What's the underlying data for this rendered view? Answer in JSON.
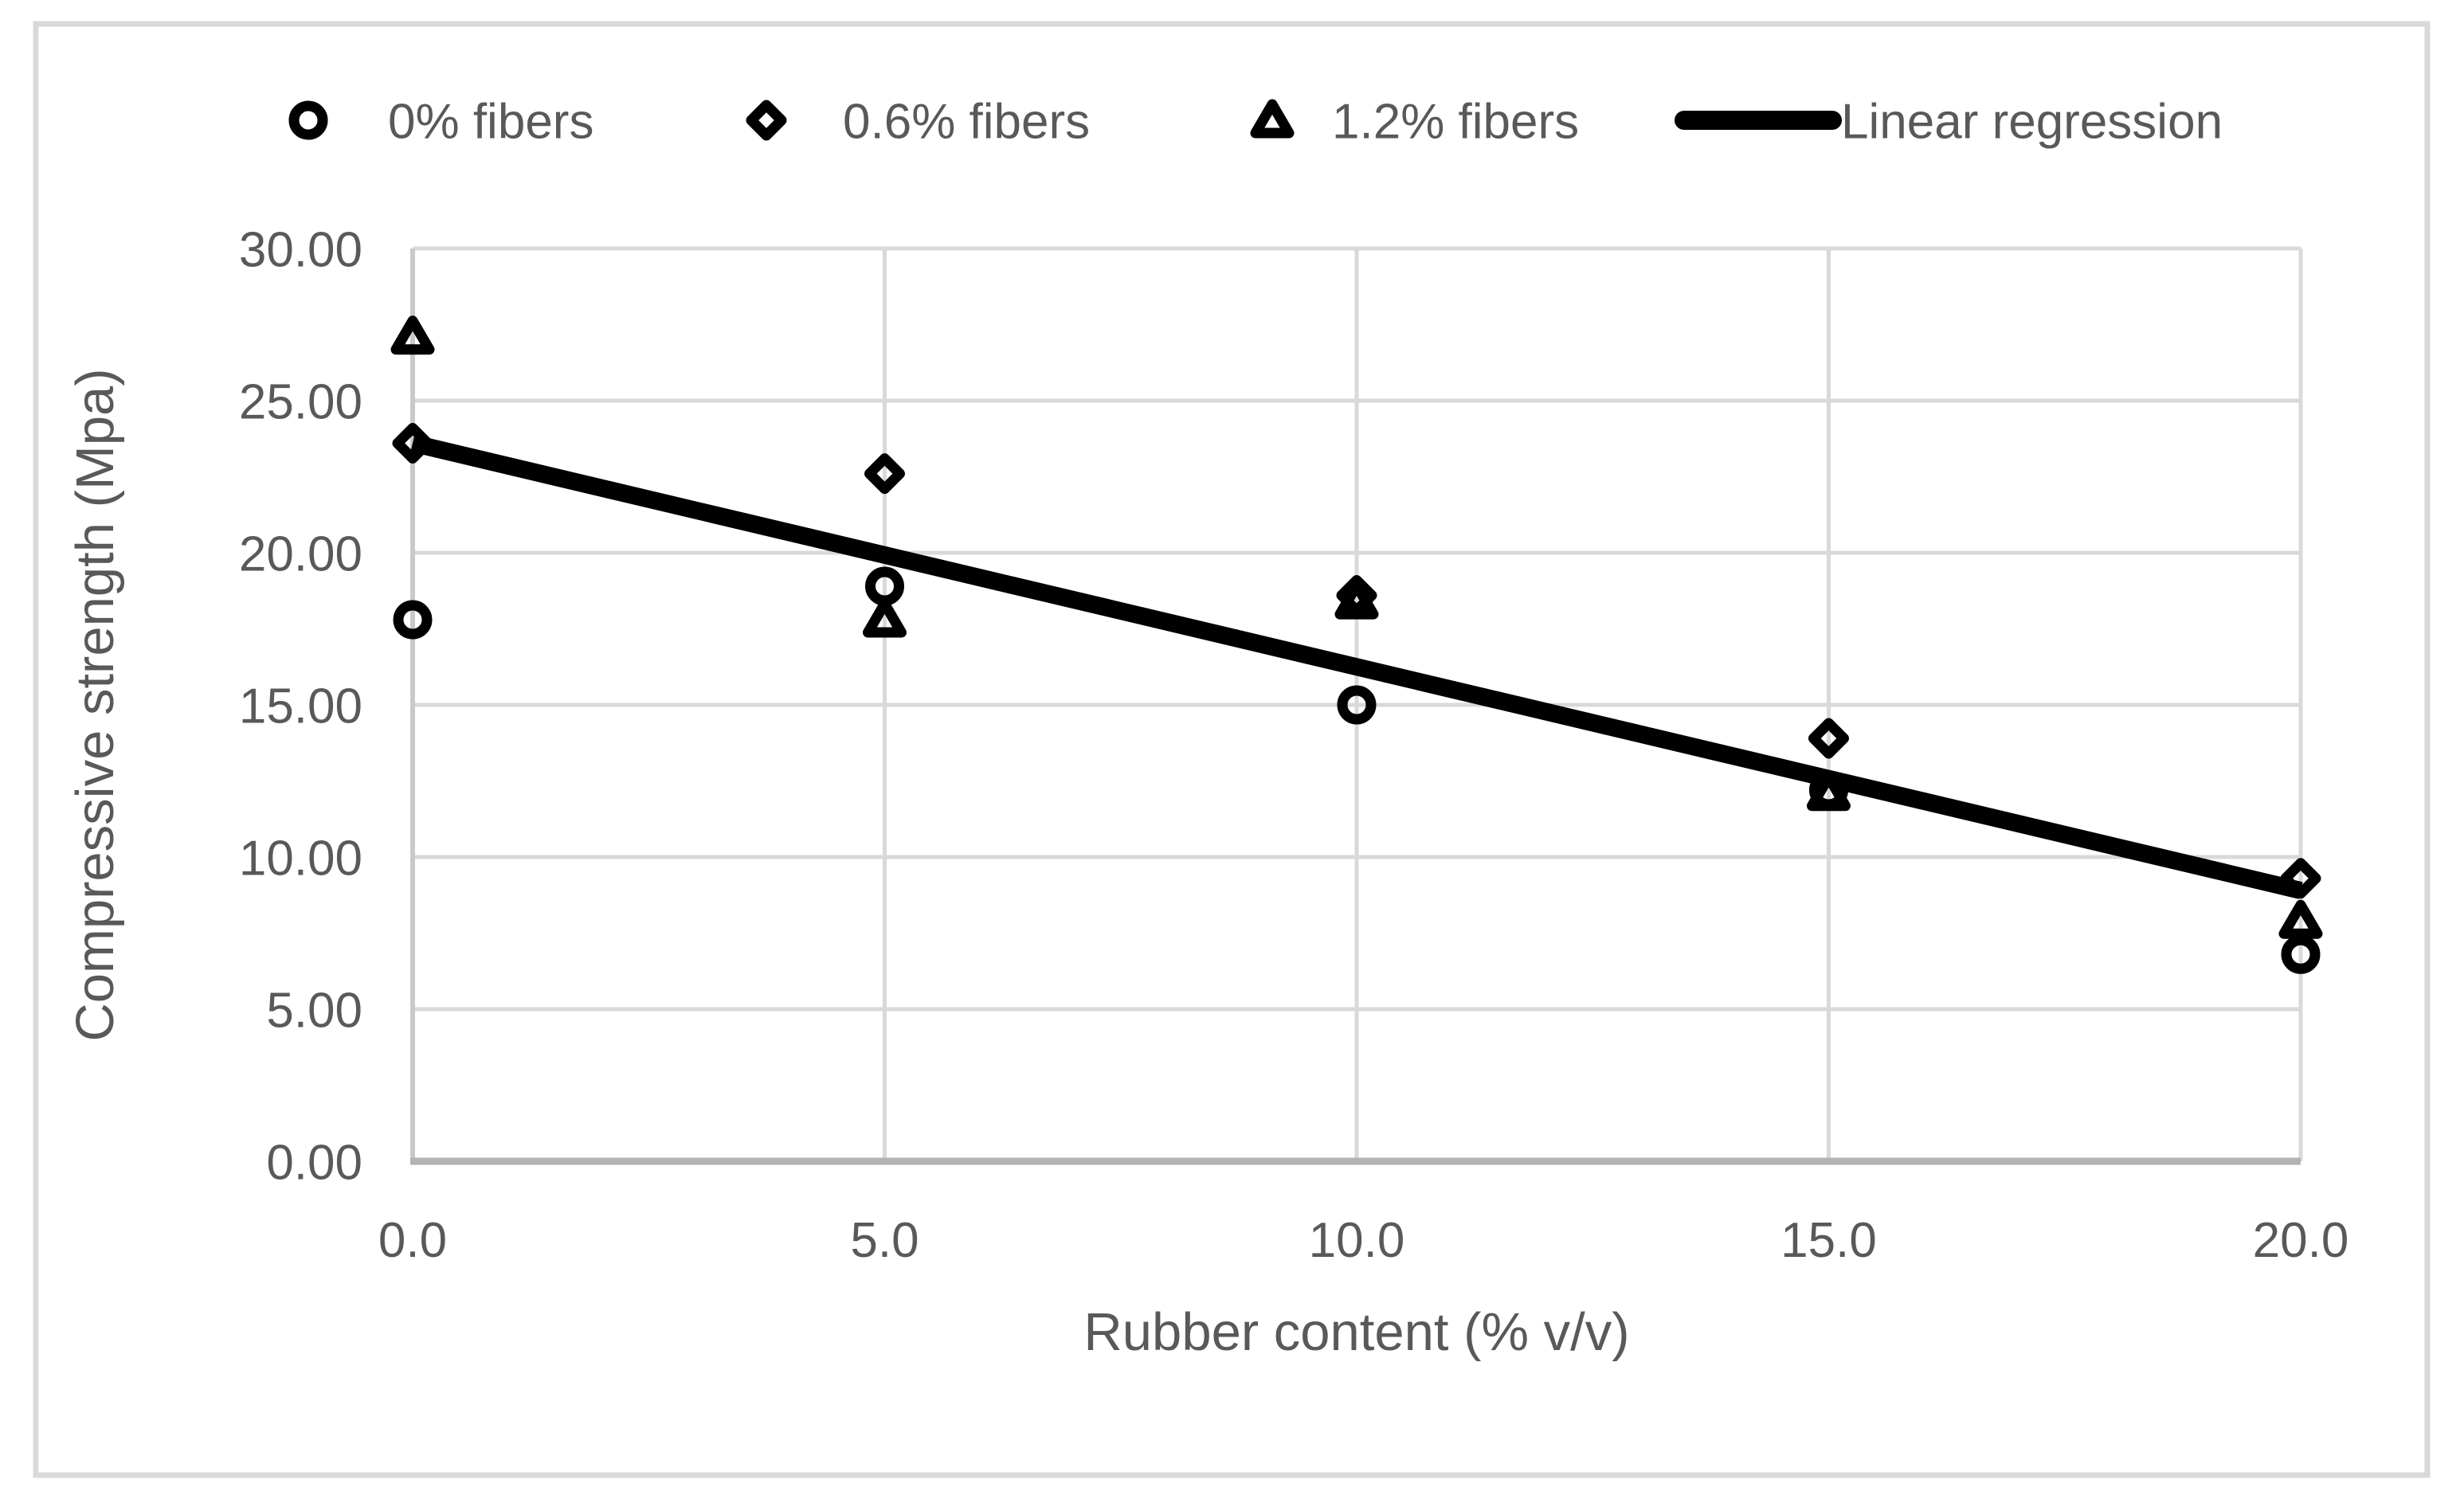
{
  "chart_data": {
    "type": "scatter",
    "title": "",
    "xlabel": "Rubber content (% v/v)",
    "ylabel": "Compressive strength (Mpa)",
    "xlim": [
      0,
      20
    ],
    "ylim": [
      0,
      30
    ],
    "grid": true,
    "legend_position": "top",
    "x": [
      0,
      5,
      10,
      15,
      20
    ],
    "x_tick_labels": [
      "0.0",
      "5.0",
      "10.0",
      "15.0",
      "20.0"
    ],
    "y_ticks": [
      0,
      5,
      10,
      15,
      20,
      25,
      30
    ],
    "y_tick_labels": [
      "0.00",
      "5.00",
      "10.00",
      "15.00",
      "20.00",
      "25.00",
      "30.00"
    ],
    "series": [
      {
        "name": "0% fibers",
        "marker": "circle",
        "values": [
          17.8,
          18.9,
          15.0,
          12.2,
          6.8
        ]
      },
      {
        "name": "0.6% fibers",
        "marker": "diamond",
        "values": [
          23.6,
          22.6,
          18.6,
          13.9,
          9.3
        ]
      },
      {
        "name": "1.2% fibers",
        "marker": "triangle",
        "values": [
          27.1,
          17.8,
          18.4,
          12.1,
          7.9
        ]
      }
    ],
    "regression": {
      "name": "Linear regression",
      "slope": -0.735,
      "intercept": 23.6,
      "x_start": 0,
      "x_end": 20,
      "y_start": 23.6,
      "y_end": 8.9
    },
    "colors": {
      "marker": "#000000",
      "regression_line": "#000000",
      "gridline": "#d9d9d9",
      "x_axis_line": "#b3b3b3",
      "y_axis_line": "#c9c9c9",
      "text": "#595959",
      "frame": "#d9d9d9",
      "background": "#ffffff"
    }
  }
}
